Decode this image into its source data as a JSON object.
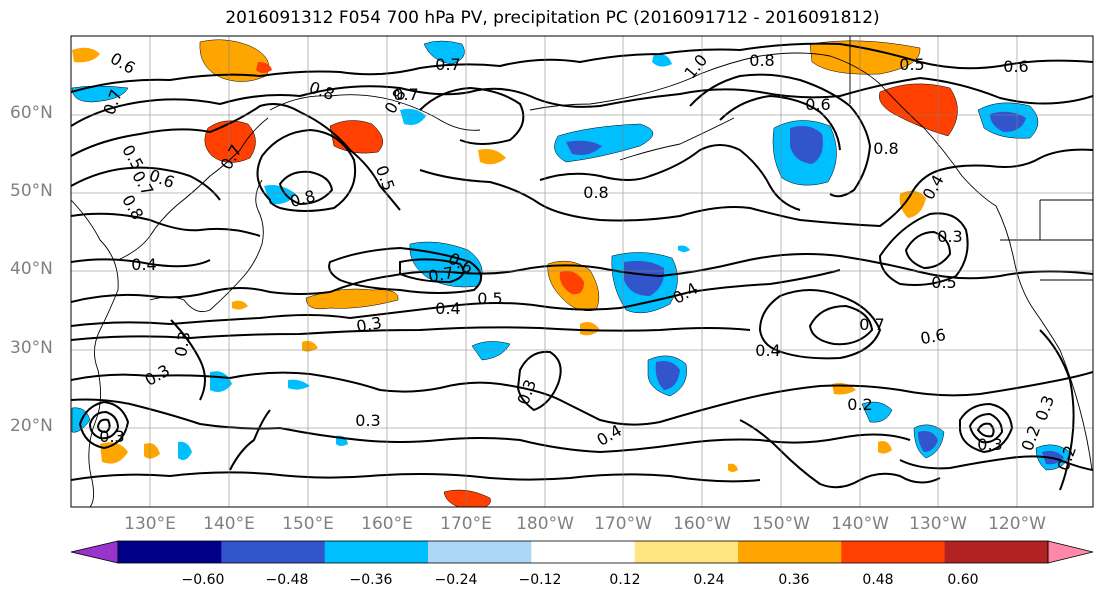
{
  "title": "2016091312 F054 700 hPa PV, precipitation PC (2016091712 - 2016091812)",
  "lat_labels": [
    "60°N",
    "50°N",
    "40°N",
    "30°N",
    "20°N"
  ],
  "lon_labels": [
    "130°E",
    "140°E",
    "150°E",
    "160°E",
    "170°E",
    "180°W",
    "170°W",
    "160°W",
    "150°W",
    "140°W",
    "130°W",
    "120°W"
  ],
  "colorbar": {
    "labels": [
      "−0.60",
      "−0.48",
      "−0.36",
      "−0.24",
      "−0.12",
      "0.12",
      "0.24",
      "0.36",
      "0.48",
      "0.60"
    ],
    "colors": [
      "#9933cc",
      "#00008b",
      "#3355cc",
      "#00bfff",
      "#add8f5",
      "#ffffff",
      "#ffe680",
      "#ffa500",
      "#ff4000",
      "#b22222",
      "#ff88aa"
    ]
  },
  "contour_labels": [
    "0.6",
    "0.7",
    "0.7",
    "0.8",
    "0.7",
    "0.8",
    "0.5",
    "0.7",
    "0.8",
    "0.5",
    "0.6",
    "0.8",
    "0.4",
    "0.6",
    "0.7",
    "0.5",
    "0.4",
    "0.3",
    "0.3",
    "0.3",
    "0.3",
    "0.3",
    "0.4",
    "0.4",
    "0.8",
    "1.0",
    "0.8",
    "0.6",
    "0.5",
    "0.6",
    "0.8",
    "0.4",
    "0.3",
    "0.5",
    "0.7",
    "0.6",
    "0.4",
    "0.2",
    "0.3",
    "0.2",
    "0.7",
    "0.3",
    "0.3",
    "0.2"
  ],
  "axis": {
    "lat_min": 10,
    "lat_max": 70,
    "lon_min": 120,
    "lon_max": 250,
    "grid": true
  }
}
